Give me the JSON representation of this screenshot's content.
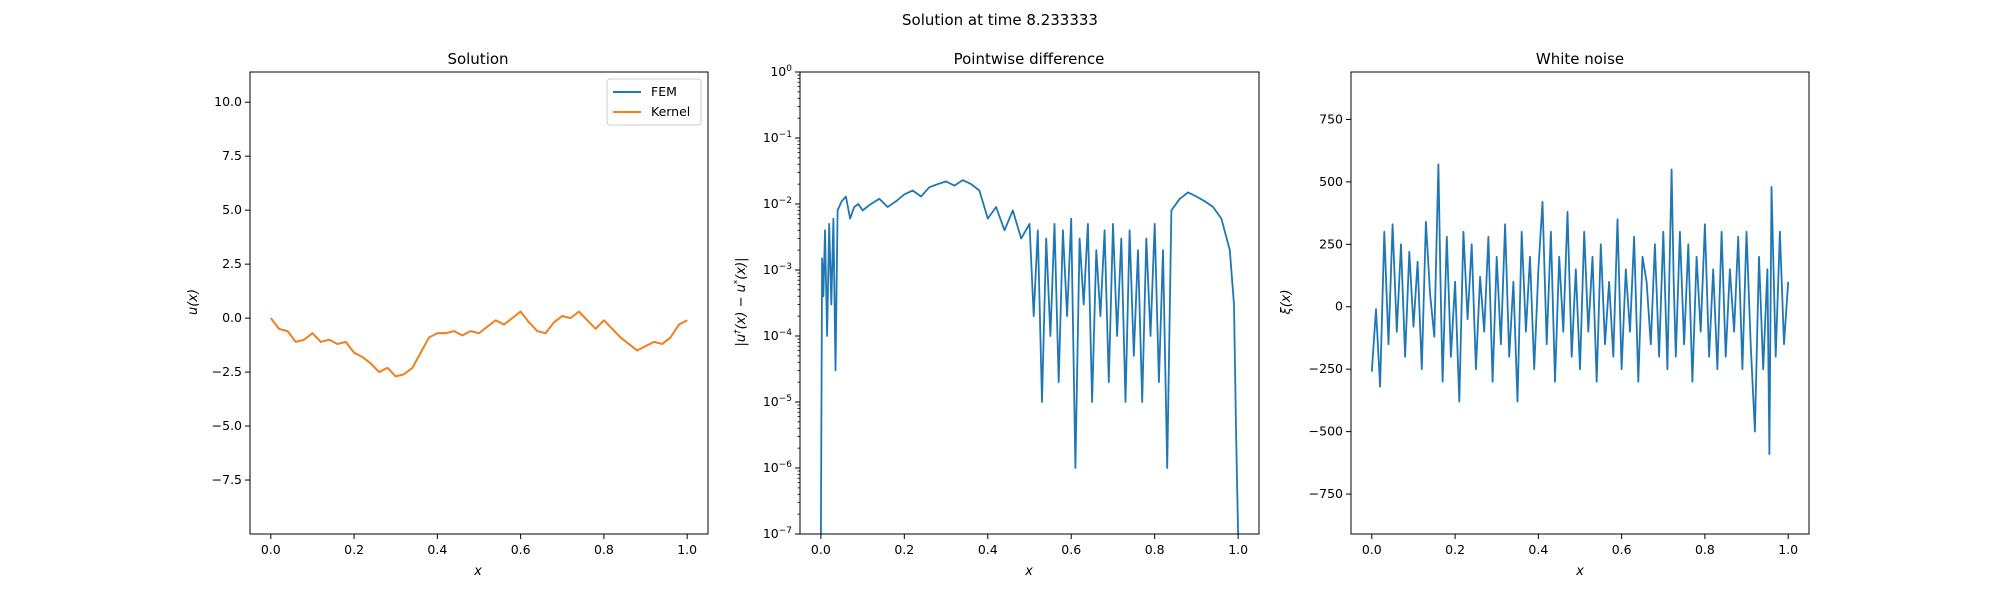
{
  "figure": {
    "suptitle": "Solution at time 8.233333"
  },
  "chart_data": [
    {
      "type": "line",
      "title": "Solution",
      "xlabel": "x",
      "ylabel": "u(x)",
      "xlim": [
        -0.05,
        1.05
      ],
      "ylim": [
        -10.0,
        11.4
      ],
      "xticks": [
        0.0,
        0.2,
        0.4,
        0.6,
        0.8,
        1.0
      ],
      "xtick_labels": [
        "0.0",
        "0.2",
        "0.4",
        "0.6",
        "0.8",
        "1.0"
      ],
      "yticks": [
        -7.5,
        -5.0,
        -2.5,
        0.0,
        2.5,
        5.0,
        7.5,
        10.0
      ],
      "ytick_labels": [
        "−7.5",
        "−5.0",
        "−2.5",
        "0.0",
        "2.5",
        "5.0",
        "7.5",
        "10.0"
      ],
      "grid": false,
      "legend": {
        "placement": "upper right",
        "entries": [
          "FEM",
          "Kernel"
        ]
      },
      "x": [
        0.0,
        0.02,
        0.04,
        0.06,
        0.08,
        0.1,
        0.12,
        0.14,
        0.16,
        0.18,
        0.2,
        0.22,
        0.24,
        0.26,
        0.28,
        0.3,
        0.32,
        0.34,
        0.36,
        0.38,
        0.4,
        0.42,
        0.44,
        0.46,
        0.48,
        0.5,
        0.52,
        0.54,
        0.56,
        0.58,
        0.6,
        0.62,
        0.64,
        0.66,
        0.68,
        0.7,
        0.72,
        0.74,
        0.76,
        0.78,
        0.8,
        0.82,
        0.84,
        0.86,
        0.88,
        0.9,
        0.92,
        0.94,
        0.96,
        0.98,
        1.0
      ],
      "series": [
        {
          "name": "FEM",
          "color": "#1f77b4",
          "values": [
            0.0,
            -0.5,
            -0.6,
            -1.1,
            -1.0,
            -0.7,
            -1.1,
            -1.0,
            -1.2,
            -1.1,
            -1.6,
            -1.8,
            -2.1,
            -2.5,
            -2.3,
            -2.7,
            -2.6,
            -2.3,
            -1.6,
            -0.9,
            -0.7,
            -0.7,
            -0.6,
            -0.8,
            -0.6,
            -0.7,
            -0.4,
            -0.1,
            -0.3,
            0.0,
            0.3,
            -0.2,
            -0.6,
            -0.7,
            -0.2,
            0.1,
            0.0,
            0.3,
            -0.1,
            -0.5,
            -0.1,
            -0.5,
            -0.9,
            -1.2,
            -1.5,
            -1.3,
            -1.1,
            -1.2,
            -0.9,
            -0.3,
            -0.1
          ]
        },
        {
          "name": "Kernel",
          "color": "#ff7f0e",
          "values": [
            0.0,
            -0.5,
            -0.6,
            -1.1,
            -1.0,
            -0.7,
            -1.1,
            -1.0,
            -1.2,
            -1.1,
            -1.6,
            -1.8,
            -2.1,
            -2.5,
            -2.3,
            -2.7,
            -2.6,
            -2.3,
            -1.6,
            -0.9,
            -0.7,
            -0.7,
            -0.6,
            -0.8,
            -0.6,
            -0.7,
            -0.4,
            -0.1,
            -0.3,
            0.0,
            0.3,
            -0.2,
            -0.6,
            -0.7,
            -0.2,
            0.1,
            0.0,
            0.3,
            -0.1,
            -0.5,
            -0.1,
            -0.5,
            -0.9,
            -1.2,
            -1.5,
            -1.3,
            -1.1,
            -1.2,
            -0.9,
            -0.3,
            -0.1
          ]
        }
      ]
    },
    {
      "type": "line",
      "title": "Pointwise difference",
      "xlabel": "x",
      "ylabel": "|u†(x) − u*(x)|",
      "ylabel_parts": {
        "pre": "|u",
        "dag": "†",
        "mid": "(x) − u",
        "star": "*",
        "post": "(x)|"
      },
      "yscale": "log",
      "xlim": [
        -0.05,
        1.05
      ],
      "ylim": [
        1e-07,
        1.0
      ],
      "xticks": [
        0.0,
        0.2,
        0.4,
        0.6,
        0.8,
        1.0
      ],
      "xtick_labels": [
        "0.0",
        "0.2",
        "0.4",
        "0.6",
        "0.8",
        "1.0"
      ],
      "ytick_exponents": [
        -7,
        -6,
        -5,
        -4,
        -3,
        -2,
        -1,
        0
      ],
      "ytick_base": "10",
      "grid": false,
      "series": [
        {
          "name": "",
          "color": "#1f77b4",
          "x": [
            0.0,
            0.003,
            0.006,
            0.01,
            0.015,
            0.02,
            0.025,
            0.03,
            0.035,
            0.04,
            0.05,
            0.06,
            0.07,
            0.08,
            0.09,
            0.1,
            0.12,
            0.14,
            0.16,
            0.18,
            0.2,
            0.22,
            0.24,
            0.26,
            0.28,
            0.3,
            0.32,
            0.34,
            0.36,
            0.38,
            0.4,
            0.42,
            0.44,
            0.46,
            0.48,
            0.5,
            0.51,
            0.52,
            0.53,
            0.54,
            0.55,
            0.56,
            0.57,
            0.58,
            0.59,
            0.6,
            0.61,
            0.62,
            0.63,
            0.64,
            0.65,
            0.66,
            0.67,
            0.68,
            0.69,
            0.7,
            0.71,
            0.72,
            0.73,
            0.74,
            0.75,
            0.76,
            0.77,
            0.78,
            0.79,
            0.8,
            0.81,
            0.82,
            0.83,
            0.84,
            0.86,
            0.88,
            0.9,
            0.92,
            0.94,
            0.96,
            0.98,
            0.99,
            0.995,
            1.0
          ],
          "values": [
            1e-07,
            0.0015,
            0.0004,
            0.004,
            0.0001,
            0.005,
            0.0003,
            0.006,
            3e-05,
            0.008,
            0.011,
            0.013,
            0.006,
            0.009,
            0.01,
            0.008,
            0.01,
            0.012,
            0.009,
            0.011,
            0.014,
            0.016,
            0.013,
            0.018,
            0.02,
            0.022,
            0.019,
            0.023,
            0.02,
            0.016,
            0.006,
            0.009,
            0.004,
            0.008,
            0.003,
            0.005,
            0.0002,
            0.004,
            1e-05,
            0.003,
            0.0001,
            0.005,
            2e-05,
            0.004,
            0.0002,
            0.006,
            1e-06,
            0.003,
            0.0003,
            0.005,
            1e-05,
            0.002,
            0.0002,
            0.004,
            2e-05,
            0.005,
            0.0001,
            0.003,
            1e-05,
            0.004,
            5e-05,
            0.002,
            1e-05,
            0.003,
            0.0001,
            0.005,
            2e-05,
            0.002,
            1e-06,
            0.008,
            0.012,
            0.015,
            0.013,
            0.011,
            0.009,
            0.006,
            0.002,
            0.0003,
            4e-06,
            1e-07
          ]
        }
      ]
    },
    {
      "type": "line",
      "title": "White noise",
      "xlabel": "x",
      "ylabel": "ξ(x)",
      "xlim": [
        -0.05,
        1.05
      ],
      "ylim": [
        -910,
        940
      ],
      "xticks": [
        0.0,
        0.2,
        0.4,
        0.6,
        0.8,
        1.0
      ],
      "xtick_labels": [
        "0.0",
        "0.2",
        "0.4",
        "0.6",
        "0.8",
        "1.0"
      ],
      "yticks": [
        -750,
        -500,
        -250,
        0,
        250,
        500,
        750
      ],
      "ytick_labels": [
        "−750",
        "−500",
        "−250",
        "0",
        "250",
        "500",
        "750"
      ],
      "grid": false,
      "series": [
        {
          "name": "",
          "color": "#1f77b4",
          "x": [
            0.0,
            0.01,
            0.02,
            0.03,
            0.04,
            0.05,
            0.06,
            0.07,
            0.08,
            0.09,
            0.1,
            0.11,
            0.12,
            0.13,
            0.14,
            0.15,
            0.16,
            0.165,
            0.17,
            0.18,
            0.19,
            0.2,
            0.21,
            0.22,
            0.23,
            0.24,
            0.25,
            0.26,
            0.27,
            0.28,
            0.29,
            0.3,
            0.31,
            0.32,
            0.33,
            0.34,
            0.35,
            0.36,
            0.37,
            0.38,
            0.39,
            0.4,
            0.41,
            0.42,
            0.43,
            0.44,
            0.45,
            0.46,
            0.47,
            0.48,
            0.49,
            0.5,
            0.51,
            0.52,
            0.53,
            0.54,
            0.55,
            0.56,
            0.57,
            0.58,
            0.59,
            0.6,
            0.61,
            0.62,
            0.63,
            0.64,
            0.65,
            0.66,
            0.67,
            0.68,
            0.69,
            0.7,
            0.71,
            0.72,
            0.725,
            0.73,
            0.74,
            0.75,
            0.76,
            0.77,
            0.78,
            0.79,
            0.8,
            0.81,
            0.82,
            0.83,
            0.84,
            0.85,
            0.86,
            0.87,
            0.88,
            0.89,
            0.9,
            0.91,
            0.92,
            0.93,
            0.94,
            0.95,
            0.955,
            0.96,
            0.97,
            0.98,
            0.99,
            1.0
          ],
          "values": [
            -260,
            -10,
            -320,
            300,
            -150,
            330,
            -100,
            250,
            -200,
            220,
            -80,
            180,
            -250,
            340,
            50,
            -120,
            570,
            100,
            -300,
            280,
            -200,
            100,
            -380,
            300,
            -50,
            250,
            -250,
            120,
            -100,
            280,
            -300,
            200,
            -150,
            330,
            -200,
            100,
            -380,
            300,
            -100,
            200,
            -250,
            150,
            420,
            -150,
            300,
            -300,
            200,
            -100,
            380,
            -200,
            150,
            -250,
            300,
            -100,
            200,
            -300,
            250,
            -150,
            100,
            -200,
            350,
            -250,
            150,
            -100,
            280,
            -300,
            200,
            100,
            -150,
            250,
            -200,
            300,
            -250,
            550,
            100,
            -200,
            300,
            -150,
            250,
            -300,
            200,
            -100,
            330,
            -200,
            150,
            -250,
            300,
            -200,
            150,
            -100,
            280,
            -250,
            300,
            -150,
            -500,
            200,
            -250,
            150,
            -590,
            480,
            -200,
            300,
            -150,
            100
          ]
        }
      ]
    }
  ]
}
